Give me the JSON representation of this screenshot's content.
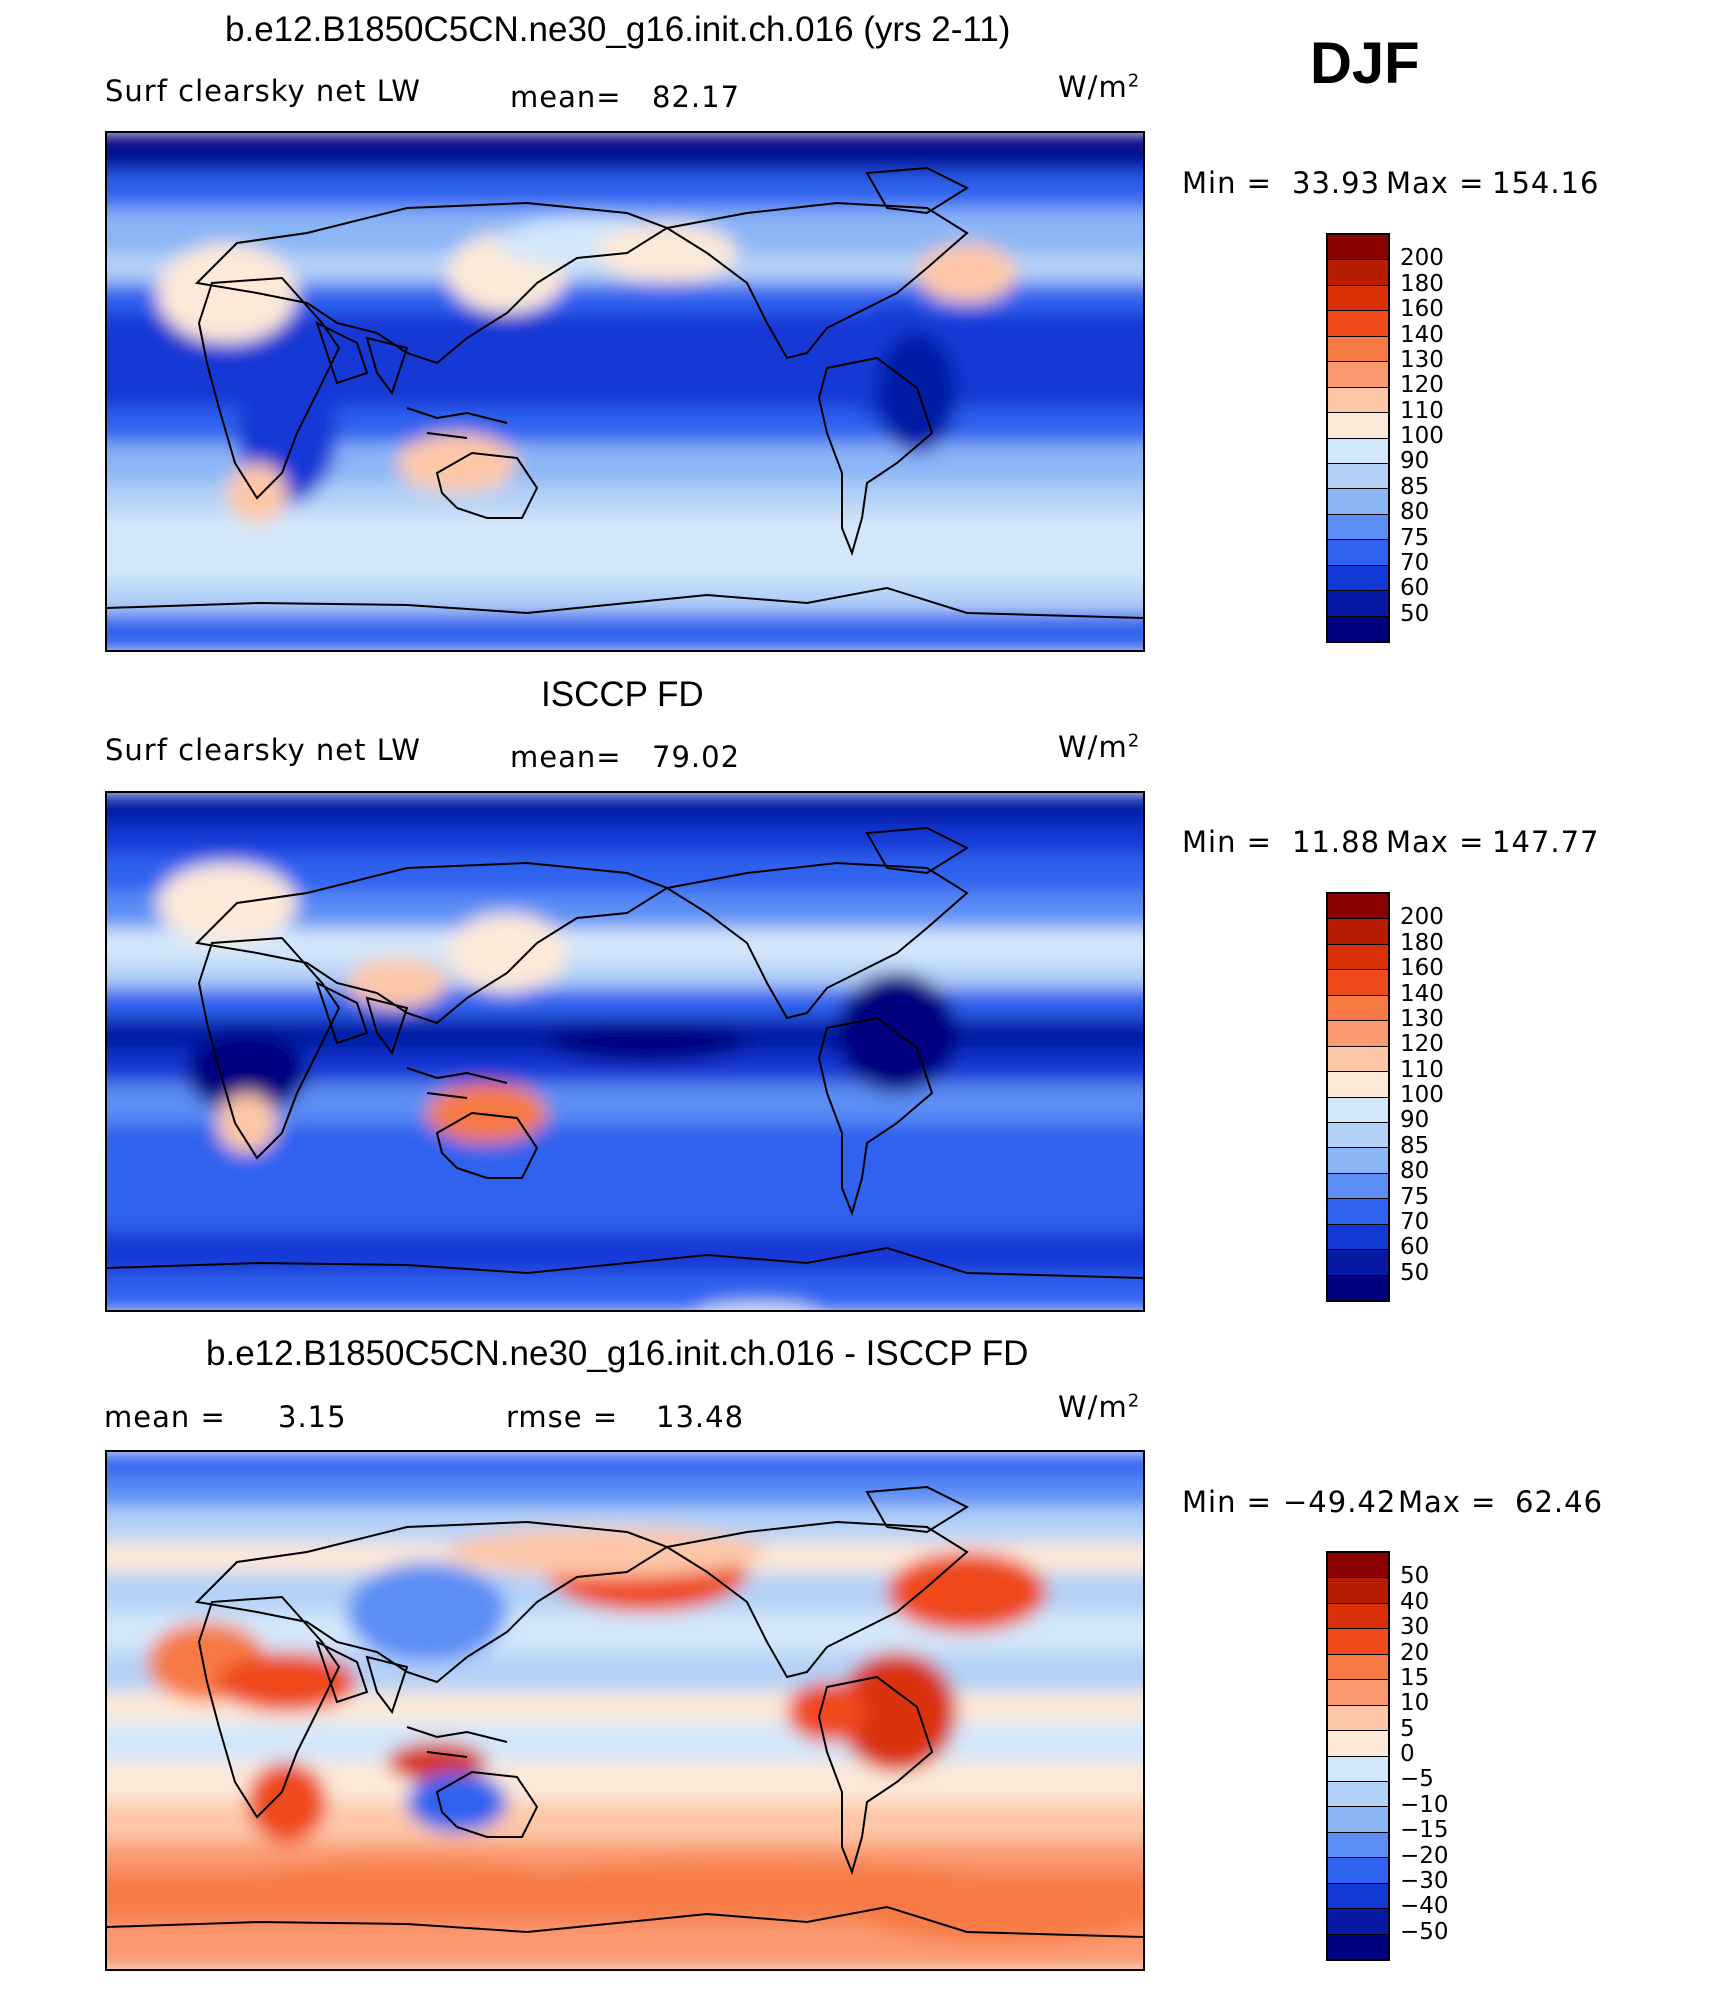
{
  "season": "DJF",
  "chart_data": [
    {
      "type": "heatmap",
      "title": "b.e12.B1850C5CN.ne30_g16.init.ch.016 (yrs 2-11)",
      "variable": "Surf clearsky net LW",
      "mean_label": "mean=",
      "mean": "82.17",
      "units": "W/m",
      "units_exp": "2",
      "min_label": "Min =",
      "min": "33.93",
      "max_label": "Max =",
      "max": "154.16",
      "levels": [
        "200",
        "180",
        "160",
        "140",
        "130",
        "120",
        "110",
        "100",
        "90",
        "85",
        "80",
        "75",
        "70",
        "60",
        "50"
      ],
      "colors": [
        "#8b0000",
        "#b71c00",
        "#d93008",
        "#ef4a1a",
        "#f77a45",
        "#fb9a70",
        "#fdc7a8",
        "#fde9d8",
        "#d3e7fa",
        "#b4d1f7",
        "#8ab5f7",
        "#5c8ef5",
        "#2f62ef",
        "#1238d5",
        "#061aa6",
        "#000080"
      ]
    },
    {
      "type": "heatmap",
      "title": "ISCCP FD",
      "variable": "Surf clearsky net LW",
      "mean_label": "mean=",
      "mean": "79.02",
      "units": "W/m",
      "units_exp": "2",
      "min_label": "Min =",
      "min": "11.88",
      "max_label": "Max =",
      "max": "147.77",
      "levels": [
        "200",
        "180",
        "160",
        "140",
        "130",
        "120",
        "110",
        "100",
        "90",
        "85",
        "80",
        "75",
        "70",
        "60",
        "50"
      ],
      "colors": [
        "#8b0000",
        "#b71c00",
        "#d93008",
        "#ef4a1a",
        "#f77a45",
        "#fb9a70",
        "#fdc7a8",
        "#fde9d8",
        "#d3e7fa",
        "#b4d1f7",
        "#8ab5f7",
        "#5c8ef5",
        "#2f62ef",
        "#1238d5",
        "#061aa6",
        "#000080"
      ]
    },
    {
      "type": "heatmap",
      "title": "b.e12.B1850C5CN.ne30_g16.init.ch.016 - ISCCP FD",
      "mean_label": "mean =",
      "mean": "3.15",
      "rmse_label": "rmse =",
      "rmse": "13.48",
      "units": "W/m",
      "units_exp": "2",
      "min_label": "Min =",
      "min": "−49.42",
      "max_label": "Max =",
      "max": "62.46",
      "levels": [
        "50",
        "40",
        "30",
        "20",
        "15",
        "10",
        "5",
        "0",
        "−5",
        "−10",
        "−15",
        "−20",
        "−30",
        "−40",
        "−50"
      ],
      "colors": [
        "#8b0000",
        "#b71c00",
        "#d93008",
        "#ef4a1a",
        "#f77a45",
        "#fb9a70",
        "#fdc7a8",
        "#fde9d8",
        "#d3e7fa",
        "#b4d1f7",
        "#8ab5f7",
        "#5c8ef5",
        "#2f62ef",
        "#1238d5",
        "#061aa6",
        "#000080"
      ]
    }
  ]
}
